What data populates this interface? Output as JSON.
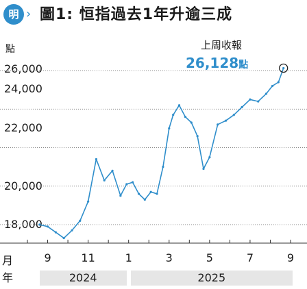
{
  "header": {
    "logo_text": "明",
    "logo_arrow": "›",
    "title": "圖1: 恒指過去1年升逾三成"
  },
  "chart_data": {
    "type": "line",
    "title": "圖1: 恒指過去1年升逾三成",
    "ylabel": "點",
    "ylim": [
      18000,
      27000
    ],
    "yticks": [
      {
        "value": 26000,
        "label": "26,000"
      },
      {
        "value": 24000,
        "label": "24,000"
      },
      {
        "value": 22000,
        "label": "22,000"
      },
      {
        "value": 20000,
        "label": "20,000"
      },
      {
        "value": 18000,
        "label": "18,000"
      }
    ],
    "xlim": [
      0,
      13
    ],
    "x_row_label": "月",
    "year_row_label": "年",
    "xticks": [
      {
        "value": 1,
        "label": "9"
      },
      {
        "value": 3,
        "label": "11"
      },
      {
        "value": 5,
        "label": "1"
      },
      {
        "value": 7,
        "label": "3"
      },
      {
        "value": 9,
        "label": "5"
      },
      {
        "value": 11,
        "label": "7"
      },
      {
        "value": 13,
        "label": "9"
      }
    ],
    "years": [
      {
        "label": "2024",
        "from": 0.6,
        "to": 4.9
      },
      {
        "label": "2025",
        "from": 5.1,
        "to": 13.1
      }
    ],
    "series": [
      {
        "name": "",
        "color": "#2f8ecb",
        "x": [
          0.6,
          1.0,
          1.4,
          1.8,
          2.2,
          2.6,
          3.0,
          3.4,
          3.8,
          4.2,
          4.6,
          4.9,
          5.2,
          5.5,
          5.8,
          6.1,
          6.4,
          6.7,
          7.0,
          7.2,
          7.5,
          7.8,
          8.1,
          8.4,
          8.7,
          9.0,
          9.4,
          9.8,
          10.2,
          10.6,
          11.0,
          11.4,
          11.8,
          12.1,
          12.4,
          12.65
        ],
        "y": [
          18000,
          17900,
          17600,
          17300,
          17700,
          18200,
          19200,
          21400,
          20300,
          20800,
          19500,
          20100,
          20200,
          19600,
          19300,
          19700,
          19600,
          21000,
          23000,
          23700,
          24200,
          23600,
          23300,
          22600,
          20900,
          21500,
          23200,
          23400,
          23700,
          24100,
          24500,
          24400,
          24800,
          25200,
          25400,
          26128
        ]
      }
    ],
    "annotation": {
      "label": "上周收報",
      "value": "26,128",
      "unit": "點",
      "x": 12.65,
      "y": 26128
    }
  }
}
